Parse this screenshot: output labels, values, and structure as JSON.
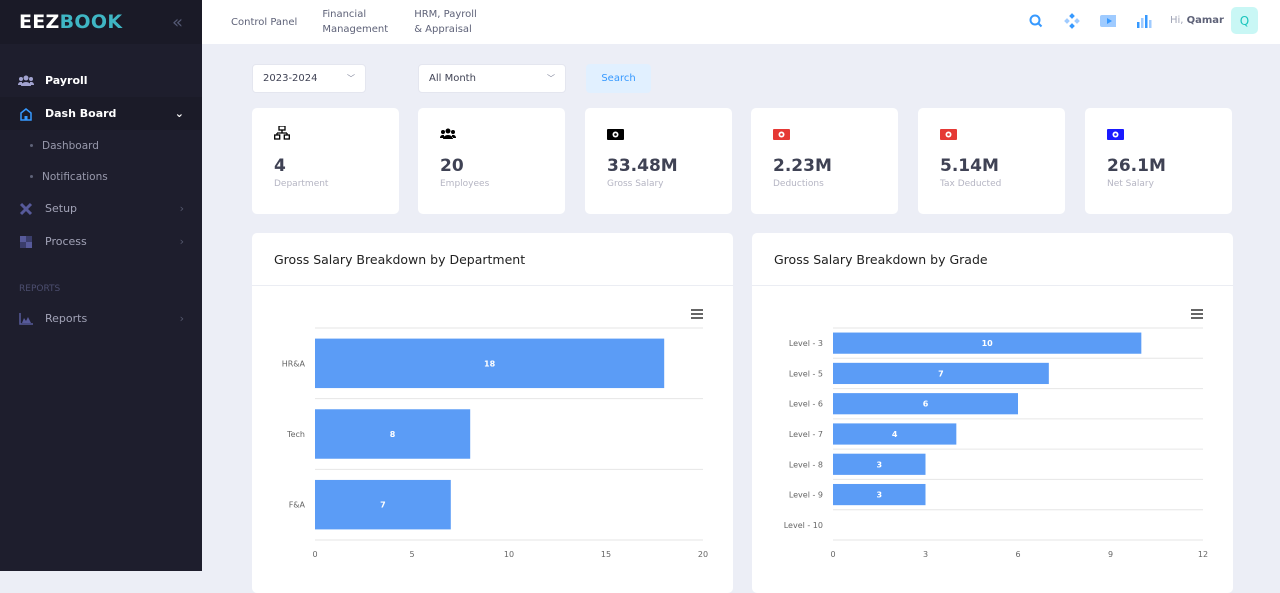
{
  "app": {
    "logo_part1": "EEZ",
    "logo_part2": "BOOK"
  },
  "sidebar": {
    "items": [
      {
        "label": "Payroll",
        "icon": "users-icon"
      },
      {
        "label": "Dash Board",
        "icon": "home-icon",
        "expanded": true,
        "children": [
          {
            "label": "Dashboard"
          },
          {
            "label": "Notifications"
          }
        ]
      },
      {
        "label": "Setup",
        "icon": "tools-icon"
      },
      {
        "label": "Process",
        "icon": "process-icon"
      }
    ],
    "section_reports": "REPORTS",
    "reports": {
      "label": "Reports",
      "icon": "area-chart-icon"
    }
  },
  "topnav": {
    "items": [
      "Control Panel",
      "Financial Management",
      "HRM, Payroll & Appraisal"
    ],
    "item2_lines": [
      "Financial",
      "Management"
    ],
    "item3_lines": [
      "HRM, Payroll",
      "& Appraisal"
    ],
    "greeting": "Hi,",
    "user": "Qamar",
    "avatar_letter": "Q"
  },
  "filters": {
    "year": "2023-2024",
    "month": "All Month",
    "search_label": "Search"
  },
  "stats": [
    {
      "value": "4",
      "label": "Department",
      "icon": "sitemap-icon",
      "color": "#000000"
    },
    {
      "value": "20",
      "label": "Employees",
      "icon": "users-icon",
      "color": "#000000"
    },
    {
      "value": "33.48M",
      "label": "Gross Salary",
      "icon": "money-icon",
      "color": "#000000"
    },
    {
      "value": "2.23M",
      "label": "Deductions",
      "icon": "money-icon",
      "color": "#e53935"
    },
    {
      "value": "5.14M",
      "label": "Tax Deducted",
      "icon": "money-icon",
      "color": "#e53935"
    },
    {
      "value": "26.1M",
      "label": "Net Salary",
      "icon": "money-icon",
      "color": "#1a1aff"
    }
  ],
  "chart_data": [
    {
      "type": "bar",
      "orientation": "horizontal",
      "title": "Gross Salary Breakdown by Department",
      "categories": [
        "HR&A",
        "Tech",
        "F&A"
      ],
      "values": [
        18,
        8,
        7
      ],
      "xlim": [
        0,
        20
      ],
      "xticks": [
        0,
        5,
        10,
        15,
        20
      ],
      "color": "#5b9cf6",
      "data_labels": true,
      "grid": true
    },
    {
      "type": "bar",
      "orientation": "horizontal",
      "title": "Gross Salary Breakdown by Grade",
      "categories": [
        "Level - 3",
        "Level - 5",
        "Level - 6",
        "Level - 7",
        "Level - 8",
        "Level - 9",
        "Level - 10"
      ],
      "values": [
        10,
        7,
        6,
        4,
        3,
        3,
        null
      ],
      "xlim": [
        0,
        12
      ],
      "xticks": [
        0,
        3,
        6,
        9,
        12
      ],
      "color": "#5b9cf6",
      "data_labels": true,
      "grid": true
    }
  ]
}
